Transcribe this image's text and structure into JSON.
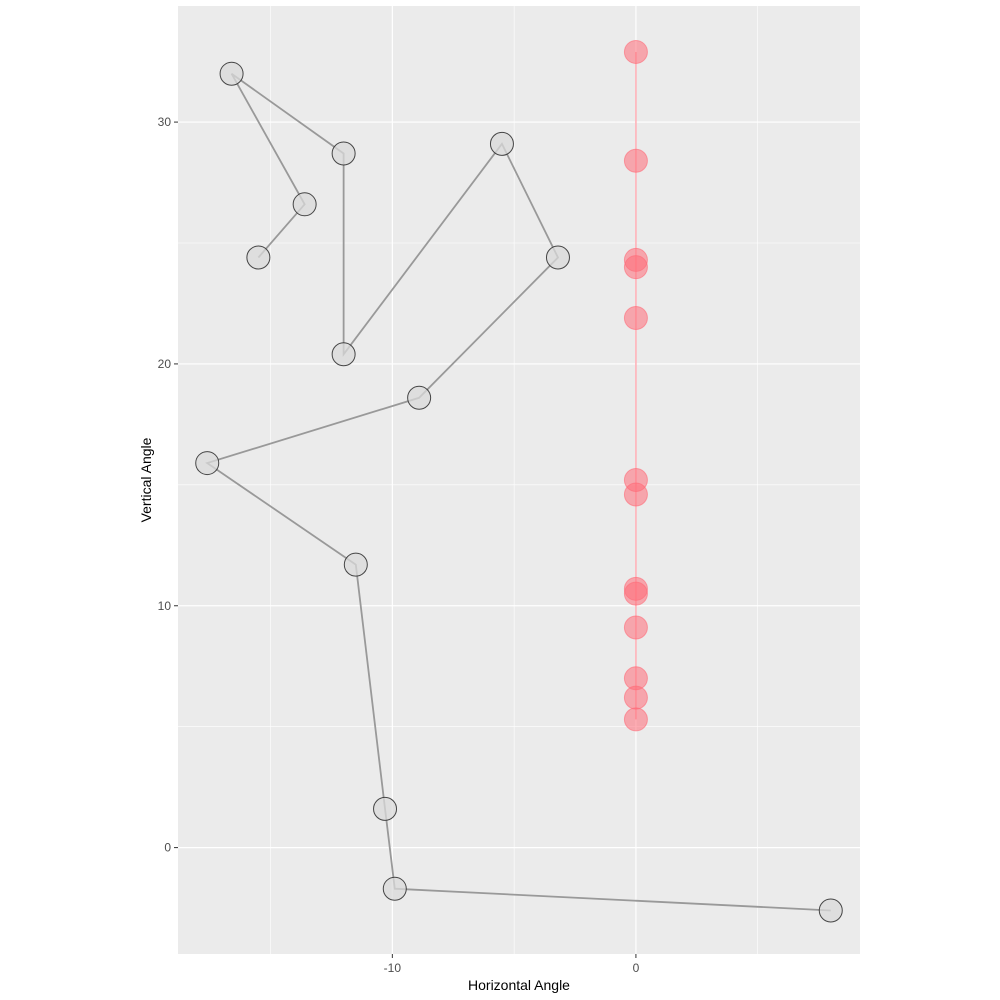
{
  "chart_data": {
    "type": "scatter",
    "xlabel": "Horizontal Angle",
    "ylabel": "Vertical Angle",
    "xlim": [
      -18.8,
      9.2
    ],
    "ylim": [
      -4.4,
      34.8
    ],
    "x_ticks": [
      -10,
      0
    ],
    "y_ticks": [
      0,
      10,
      20,
      30
    ],
    "x_tick_labels": [
      "-10",
      "0"
    ],
    "y_tick_labels": [
      "0",
      "10",
      "20",
      "30"
    ],
    "grid": true,
    "legend": "none",
    "colors": {
      "panel_background": "#ebebeb",
      "grid_line": "#ffffff",
      "gray_point_fill": "#d9d9d9",
      "gray_point_stroke": "#333333",
      "gray_path": "#999999",
      "red_point_fill": "#ff6b78",
      "red_path": "#ffb3b9"
    },
    "series": [
      {
        "style": "gray-path",
        "x": [
          -15.5,
          -13.6,
          -16.6,
          -12.0,
          -12.0,
          -5.5,
          -3.2,
          -8.9,
          -17.6,
          -11.5,
          -10.3,
          -9.9,
          8.0
        ],
        "y": [
          24.4,
          26.6,
          32.0,
          28.7,
          20.4,
          29.1,
          24.4,
          18.6,
          15.9,
          11.7,
          1.6,
          -1.7,
          -2.6
        ]
      },
      {
        "style": "red-path",
        "x": [
          0,
          0,
          0,
          0,
          0,
          0,
          0,
          0,
          0,
          0,
          0,
          0,
          0
        ],
        "y": [
          32.9,
          28.4,
          24.3,
          24.0,
          21.9,
          15.2,
          14.6,
          10.7,
          10.5,
          9.1,
          7.0,
          6.2,
          5.3
        ]
      }
    ]
  }
}
